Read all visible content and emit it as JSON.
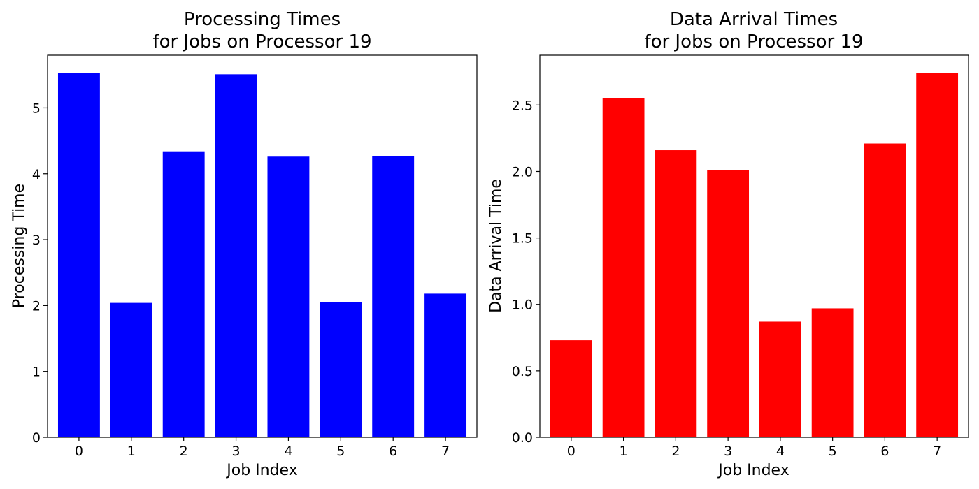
{
  "chart_data": [
    {
      "type": "bar",
      "title_line1": "Processing Times",
      "title_line2": "for Jobs on Processor 19",
      "xlabel": "Job Index",
      "ylabel": "Processing Time",
      "categories": [
        "0",
        "1",
        "2",
        "3",
        "4",
        "5",
        "6",
        "7"
      ],
      "values": [
        5.53,
        2.04,
        4.34,
        5.51,
        4.26,
        2.05,
        4.27,
        2.18
      ],
      "ylim": [
        0,
        5.8
      ],
      "yticks": [
        0,
        1,
        2,
        3,
        4,
        5
      ],
      "ytick_labels": [
        "0",
        "1",
        "2",
        "3",
        "4",
        "5"
      ],
      "color": "#0000ff",
      "grid": false,
      "legend": "none"
    },
    {
      "type": "bar",
      "title_line1": "Data Arrival Times",
      "title_line2": "for Jobs on Processor 19",
      "xlabel": "Job Index",
      "ylabel": "Data Arrival Time",
      "categories": [
        "0",
        "1",
        "2",
        "3",
        "4",
        "5",
        "6",
        "7"
      ],
      "values": [
        0.73,
        2.55,
        2.16,
        2.01,
        0.87,
        0.97,
        2.21,
        2.74
      ],
      "ylim": [
        0,
        2.875
      ],
      "yticks": [
        0,
        0.5,
        1,
        1.5,
        2,
        2.5
      ],
      "ytick_labels": [
        "0.0",
        "0.5",
        "1.0",
        "1.5",
        "2.0",
        "2.5"
      ],
      "color": "#ff0000",
      "grid": false,
      "legend": "none"
    }
  ]
}
